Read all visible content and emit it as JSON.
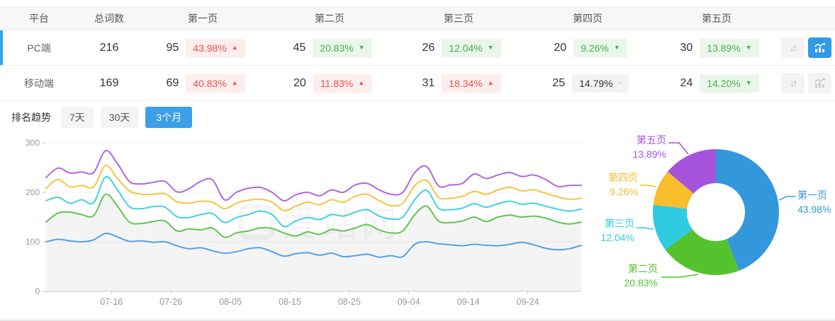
{
  "watermark": "爱站网",
  "colors": {
    "accent_blue": "#3d9fe8",
    "selected_row_bar": "#2ca9f1",
    "active_icon_bg": "#2f9be6",
    "up_red": "#f25050",
    "up_red_bg": "#fdeded",
    "down_green": "#47b14e",
    "down_green_bg": "#e9f6e9",
    "flat_gray_bg": "#f3f3f3",
    "axis_text": "#999999",
    "grid_line": "#efefef"
  },
  "icons": {
    "sort_glyph": "↓↑",
    "up_arrow": "▲",
    "down_arrow": "▼",
    "flat_dash": "−"
  },
  "table": {
    "columns": [
      "平台",
      "总词数",
      "第一页",
      "第二页",
      "第三页",
      "第四页",
      "第五页"
    ],
    "rows": [
      {
        "platform": "PC端",
        "total": "216",
        "selected": true,
        "trend_active": true,
        "pages": [
          {
            "count": "95",
            "pct": "43.98%",
            "dir": "up",
            "tone": "red"
          },
          {
            "count": "45",
            "pct": "20.83%",
            "dir": "down",
            "tone": "green"
          },
          {
            "count": "26",
            "pct": "12.04%",
            "dir": "down",
            "tone": "green"
          },
          {
            "count": "20",
            "pct": "9.26%",
            "dir": "down",
            "tone": "green"
          },
          {
            "count": "30",
            "pct": "13.89%",
            "dir": "down",
            "tone": "green"
          }
        ]
      },
      {
        "platform": "移动端",
        "total": "169",
        "selected": false,
        "trend_active": false,
        "pages": [
          {
            "count": "69",
            "pct": "40.83%",
            "dir": "up",
            "tone": "red"
          },
          {
            "count": "20",
            "pct": "11.83%",
            "dir": "up",
            "tone": "red"
          },
          {
            "count": "31",
            "pct": "18.34%",
            "dir": "up",
            "tone": "red"
          },
          {
            "count": "25",
            "pct": "14.79%",
            "dir": "flat",
            "tone": "gray"
          },
          {
            "count": "24",
            "pct": "14.20%",
            "dir": "down",
            "tone": "green"
          }
        ]
      }
    ]
  },
  "trend": {
    "label": "排名趋势",
    "tabs": [
      {
        "label": "7天",
        "active": false
      },
      {
        "label": "30天",
        "active": false
      },
      {
        "label": "3个月",
        "active": true
      }
    ]
  },
  "chart_data": [
    {
      "type": "line",
      "title": "排名趋势 3个月",
      "stacked_cumulative": true,
      "ylim": [
        0,
        300
      ],
      "y_ticks": [
        0,
        100,
        200,
        300
      ],
      "x_domain": [
        0,
        90
      ],
      "x_ticks": [
        {
          "label": "07-16",
          "day": 11
        },
        {
          "label": "07-26",
          "day": 21
        },
        {
          "label": "08-05",
          "day": 31
        },
        {
          "label": "08-15",
          "day": 41
        },
        {
          "label": "08-25",
          "day": 51
        },
        {
          "label": "09-04",
          "day": 61
        },
        {
          "label": "09-14",
          "day": 71
        },
        {
          "label": "09-24",
          "day": 81
        }
      ],
      "grid": true,
      "series": [
        {
          "name": "第一页",
          "color": "#55a1e3",
          "fill": false,
          "values": [
            100,
            105,
            102,
            100,
            104,
            117,
            110,
            101,
            102,
            99,
            100,
            92,
            86,
            88,
            82,
            77,
            80,
            86,
            88,
            80,
            71,
            76,
            78,
            73,
            77,
            70,
            72,
            75,
            69,
            72,
            70,
            95,
            100,
            96,
            94,
            92,
            95,
            93,
            92,
            95,
            99,
            94,
            87,
            84,
            86,
            93
          ]
        },
        {
          "name": "第二页",
          "color": "#61c553",
          "fill": true,
          "values": [
            140,
            158,
            160,
            155,
            153,
            196,
            172,
            140,
            137,
            141,
            142,
            122,
            126,
            124,
            128,
            109,
            118,
            122,
            128,
            127,
            118,
            112,
            120,
            115,
            125,
            122,
            128,
            135,
            124,
            118,
            122,
            155,
            172,
            142,
            139,
            142,
            150,
            141,
            150,
            154,
            150,
            152,
            148,
            140,
            136,
            140
          ]
        },
        {
          "name": "第三页",
          "color": "#41d2e0",
          "fill": false,
          "values": [
            183,
            190,
            178,
            185,
            179,
            231,
            205,
            171,
            167,
            171,
            170,
            151,
            149,
            155,
            157,
            139,
            149,
            155,
            162,
            155,
            131,
            142,
            149,
            145,
            155,
            152,
            160,
            165,
            152,
            146,
            150,
            185,
            204,
            168,
            165,
            168,
            177,
            170,
            177,
            182,
            176,
            178,
            172,
            166,
            162,
            166
          ]
        },
        {
          "name": "第四页",
          "color": "#f7c440",
          "fill": false,
          "values": [
            208,
            226,
            211,
            214,
            211,
            254,
            228,
            203,
            196,
            196,
            197,
            181,
            178,
            182,
            180,
            167,
            178,
            184,
            186,
            180,
            163,
            172,
            180,
            175,
            185,
            180,
            192,
            196,
            183,
            173,
            178,
            213,
            224,
            190,
            188,
            192,
            202,
            196,
            205,
            210,
            203,
            205,
            198,
            191,
            186,
            188
          ]
        },
        {
          "name": "第五页",
          "color": "#b067e0",
          "fill": false,
          "values": [
            230,
            249,
            239,
            241,
            240,
            284,
            258,
            222,
            217,
            220,
            222,
            201,
            207,
            222,
            225,
            185,
            200,
            208,
            210,
            200,
            183,
            195,
            200,
            193,
            205,
            200,
            215,
            218,
            205,
            196,
            200,
            240,
            252,
            213,
            215,
            218,
            237,
            228,
            235,
            240,
            232,
            235,
            226,
            212,
            214,
            214
          ]
        }
      ]
    },
    {
      "type": "donut",
      "slices": [
        {
          "label": "第一页",
          "value": 43.98,
          "pct_text": "43.98%",
          "color": "#3398db"
        },
        {
          "label": "第二页",
          "value": 20.83,
          "pct_text": "20.83%",
          "color": "#54c22f"
        },
        {
          "label": "第三页",
          "value": 12.04,
          "pct_text": "12.04%",
          "color": "#2fcbe0"
        },
        {
          "label": "第四页",
          "value": 9.26,
          "pct_text": "9.26%",
          "color": "#f8bd2b"
        },
        {
          "label": "第五页",
          "value": 13.89,
          "pct_text": "13.89%",
          "color": "#a653dc"
        }
      ],
      "legend_position": "callout-labels"
    }
  ]
}
